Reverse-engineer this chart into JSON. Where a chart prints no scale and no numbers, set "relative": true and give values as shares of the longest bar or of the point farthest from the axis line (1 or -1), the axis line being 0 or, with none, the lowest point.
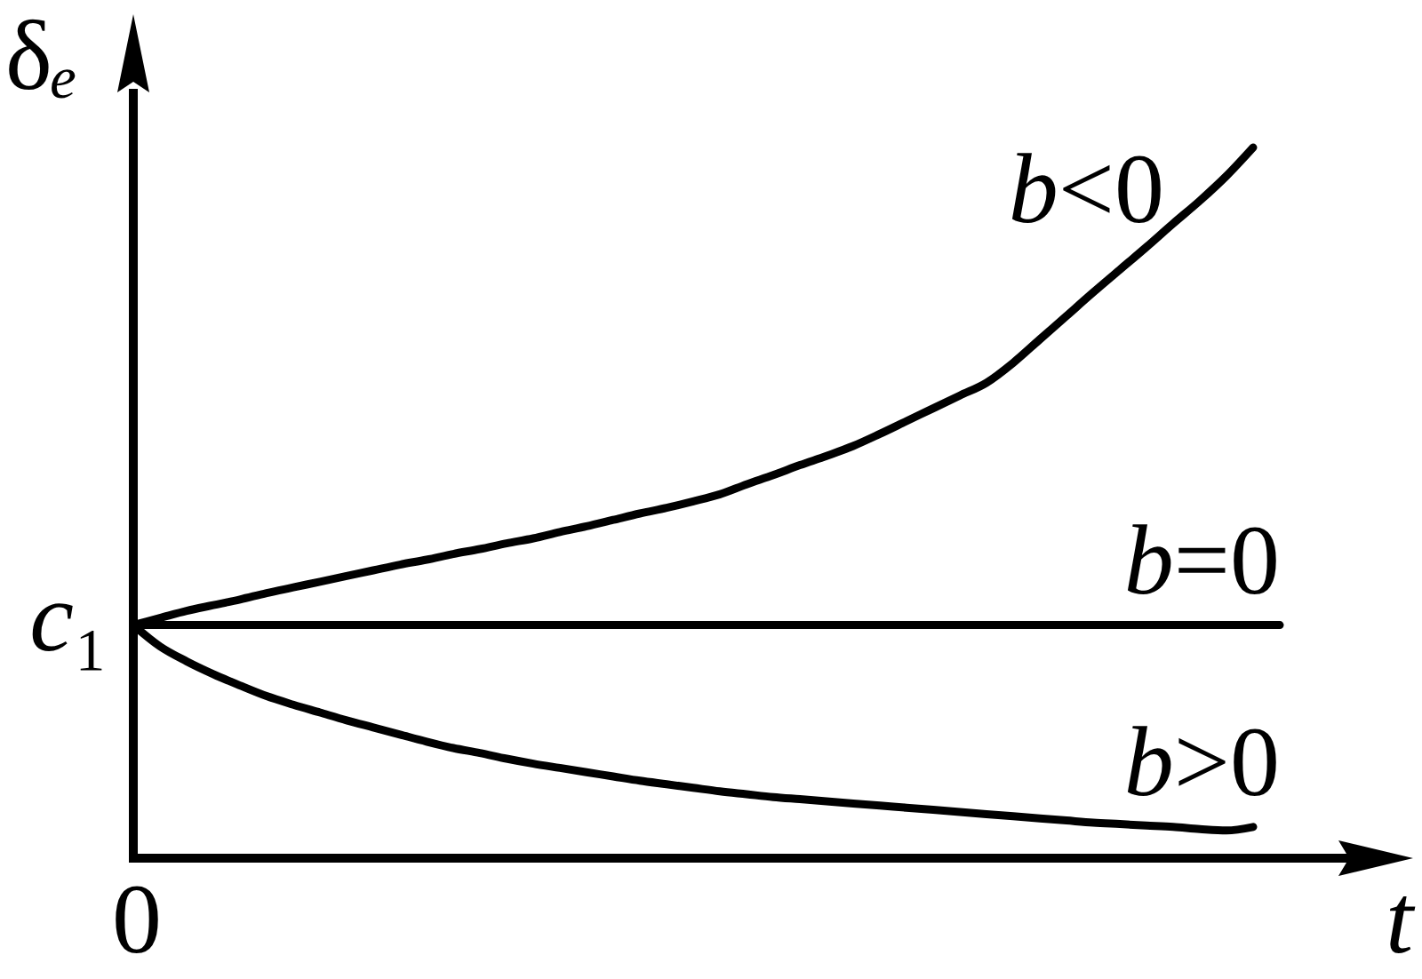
{
  "chart_data": {
    "type": "line",
    "xlabel": "t",
    "ylabel": "δₑ",
    "relative": true,
    "categories": [
      null,
      null,
      null,
      null,
      null,
      null,
      null,
      null,
      null,
      null,
      null,
      null,
      null,
      null,
      null,
      null,
      null,
      null,
      null,
      null,
      null,
      null,
      null,
      null,
      null,
      null,
      null,
      null,
      null,
      null,
      null,
      null,
      null,
      null,
      null,
      null,
      null,
      null,
      null,
      null,
      null,
      null,
      null,
      null
    ],
    "series": [
      {
        "name": "b<0",
        "color": "#000000",
        "values": [
          0.328,
          0.338,
          0.348,
          0.356,
          0.364,
          0.373,
          0.381,
          0.389,
          0.397,
          0.405,
          0.413,
          0.42,
          0.428,
          0.435,
          0.443,
          0.45,
          0.459,
          0.467,
          0.476,
          0.485,
          0.493,
          0.502,
          0.512,
          0.526,
          0.539,
          0.553,
          0.566,
          0.58,
          0.597,
          0.615,
          0.633,
          0.651,
          0.669,
          0.697,
          0.73,
          0.763,
          0.796,
          0.828,
          0.86,
          0.893,
          0.925,
          0.96,
          1.0,
          null
        ]
      },
      {
        "name": "b=0",
        "color": "#000000",
        "values": [
          0.328,
          0.328,
          0.328,
          0.328,
          0.328,
          0.328,
          0.328,
          0.328,
          0.328,
          0.328,
          0.328,
          0.328,
          0.328,
          0.328,
          0.328,
          0.328,
          0.328,
          0.328,
          0.328,
          0.328,
          0.328,
          0.328,
          0.328,
          0.328,
          0.328,
          0.328,
          0.328,
          0.328,
          0.328,
          0.328,
          0.328,
          0.328,
          0.328,
          0.328,
          0.328,
          0.328,
          0.328,
          0.328,
          0.328,
          0.328,
          0.328,
          0.328,
          0.328,
          0.328
        ]
      },
      {
        "name": "b>0",
        "color": "#000000",
        "values": [
          0.328,
          0.298,
          0.277,
          0.259,
          0.243,
          0.228,
          0.216,
          0.205,
          0.194,
          0.184,
          0.174,
          0.164,
          0.155,
          0.148,
          0.14,
          0.133,
          0.127,
          0.121,
          0.115,
          0.109,
          0.104,
          0.099,
          0.094,
          0.09,
          0.086,
          0.083,
          0.08,
          0.077,
          0.074,
          0.071,
          0.068,
          0.065,
          0.062,
          0.059,
          0.056,
          0.053,
          0.05,
          0.048,
          0.046,
          0.044,
          0.041,
          0.039,
          0.044,
          null
        ]
      }
    ],
    "annotations": [
      "c₁",
      "0"
    ]
  }
}
